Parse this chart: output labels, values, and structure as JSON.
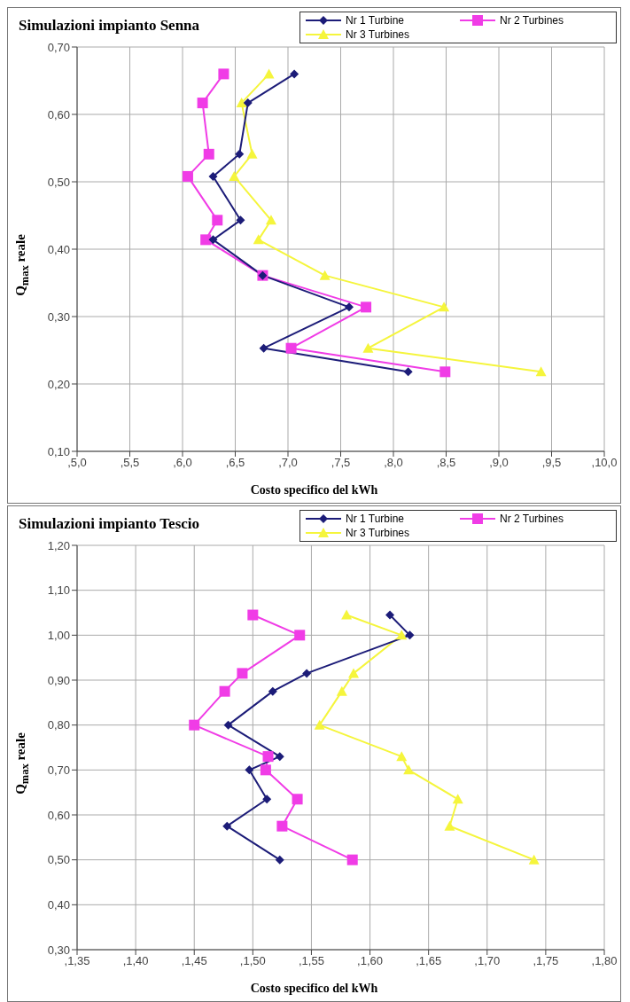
{
  "chart_data": [
    {
      "type": "line",
      "title": "Simulazioni impianto Senna",
      "xlabel": "Costo specifico del kWh",
      "ylabel": "Q$_{max}$ reale",
      "legend": "top right",
      "grid": true,
      "line_style": "solid",
      "xlim": [
        5.0,
        10.0
      ],
      "xticks": [
        {
          "value": 5.0,
          "label": ",5,0"
        },
        {
          "value": 5.5,
          "label": ",5,5"
        },
        {
          "value": 6.0,
          "label": ",6,0"
        },
        {
          "value": 6.5,
          "label": ",6,5"
        },
        {
          "value": 7.0,
          "label": ",7,0"
        },
        {
          "value": 7.5,
          "label": ",7,5"
        },
        {
          "value": 8.0,
          "label": ",8,0"
        },
        {
          "value": 8.5,
          "label": ",8,5"
        },
        {
          "value": 9.0,
          "label": ",9,0"
        },
        {
          "value": 9.5,
          "label": ",9,5"
        },
        {
          "value": 10.0,
          "label": ",10,0"
        }
      ],
      "ylim": [
        0.1,
        0.7
      ],
      "yticks": [
        {
          "value": 0.1,
          "label": "0,10"
        },
        {
          "value": 0.2,
          "label": "0,20"
        },
        {
          "value": 0.3,
          "label": "0,30"
        },
        {
          "value": 0.4,
          "label": "0,40"
        },
        {
          "value": 0.5,
          "label": "0,50"
        },
        {
          "value": 0.6,
          "label": "0,60"
        },
        {
          "value": 0.7,
          "label": "0,70"
        }
      ],
      "series": [
        {
          "name": "Nr 1 Turbine",
          "color": "#1c1c78",
          "marker": "diamond",
          "x": [
            7.06,
            6.62,
            6.54,
            6.29,
            6.55,
            6.29,
            6.76,
            7.58,
            6.77,
            8.14
          ],
          "values": [
            0.66,
            0.617,
            0.541,
            0.508,
            0.443,
            0.414,
            0.361,
            0.314,
            0.253,
            0.218
          ]
        },
        {
          "name": "Nr 2 Turbines",
          "color": "#f03ce6",
          "marker": "square",
          "x": [
            6.39,
            6.19,
            6.25,
            6.05,
            6.33,
            6.22,
            6.76,
            7.74,
            7.03,
            8.49
          ],
          "values": [
            0.66,
            0.617,
            0.541,
            0.508,
            0.443,
            0.414,
            0.361,
            0.314,
            0.253,
            0.218
          ]
        },
        {
          "name": "Nr 3 Turbines",
          "color": "#f5f53c",
          "marker": "triangle",
          "x": [
            6.82,
            6.56,
            6.66,
            6.49,
            6.84,
            6.72,
            7.35,
            8.48,
            7.76,
            9.4
          ],
          "values": [
            0.66,
            0.617,
            0.541,
            0.508,
            0.443,
            0.414,
            0.361,
            0.314,
            0.253,
            0.218
          ]
        }
      ]
    },
    {
      "type": "line",
      "title": "Simulazioni impianto Tescio",
      "xlabel": "Costo specifico del kWh",
      "ylabel": "Q$_{max}$ reale",
      "legend": "top right",
      "grid": true,
      "line_style": "solid",
      "xlim": [
        1.35,
        1.8
      ],
      "xticks": [
        {
          "value": 1.35,
          "label": ",1,35"
        },
        {
          "value": 1.4,
          "label": ",1,40"
        },
        {
          "value": 1.45,
          "label": ",1,45"
        },
        {
          "value": 1.5,
          "label": ",1,50"
        },
        {
          "value": 1.55,
          "label": ",1,55"
        },
        {
          "value": 1.6,
          "label": ",1,60"
        },
        {
          "value": 1.65,
          "label": ",1,65"
        },
        {
          "value": 1.7,
          "label": ",1,70"
        },
        {
          "value": 1.75,
          "label": ",1,75"
        },
        {
          "value": 1.8,
          "label": ",1,80"
        }
      ],
      "ylim": [
        0.3,
        1.2
      ],
      "yticks": [
        {
          "value": 0.3,
          "label": "0,30"
        },
        {
          "value": 0.4,
          "label": "0,40"
        },
        {
          "value": 0.5,
          "label": "0,50"
        },
        {
          "value": 0.6,
          "label": "0,60"
        },
        {
          "value": 0.7,
          "label": "0,70"
        },
        {
          "value": 0.8,
          "label": "0,80"
        },
        {
          "value": 0.9,
          "label": "0,90"
        },
        {
          "value": 1.0,
          "label": "1,00"
        },
        {
          "value": 1.1,
          "label": "1,10"
        },
        {
          "value": 1.2,
          "label": "1,20"
        }
      ],
      "series": [
        {
          "name": "Nr 1 Turbine",
          "color": "#1c1c78",
          "marker": "diamond",
          "x": [
            1.617,
            1.634,
            1.546,
            1.517,
            1.479,
            1.523,
            1.497,
            1.512,
            1.478,
            1.523
          ],
          "values": [
            1.045,
            1.0,
            0.915,
            0.875,
            0.8,
            0.73,
            0.7,
            0.635,
            0.575,
            0.5
          ]
        },
        {
          "name": "Nr 2 Turbines",
          "color": "#f03ce6",
          "marker": "square",
          "x": [
            1.5,
            1.54,
            1.491,
            1.476,
            1.45,
            1.513,
            1.511,
            1.538,
            1.525,
            1.585
          ],
          "values": [
            1.045,
            1.0,
            0.915,
            0.875,
            0.8,
            0.73,
            0.7,
            0.635,
            0.575,
            0.5
          ]
        },
        {
          "name": "Nr 3 Turbines",
          "color": "#f5f53c",
          "marker": "triangle",
          "x": [
            1.58,
            1.627,
            1.586,
            1.576,
            1.557,
            1.627,
            1.633,
            1.675,
            1.668,
            1.74
          ],
          "values": [
            1.045,
            1.0,
            0.915,
            0.875,
            0.8,
            0.73,
            0.7,
            0.635,
            0.575,
            0.5
          ]
        }
      ]
    }
  ]
}
